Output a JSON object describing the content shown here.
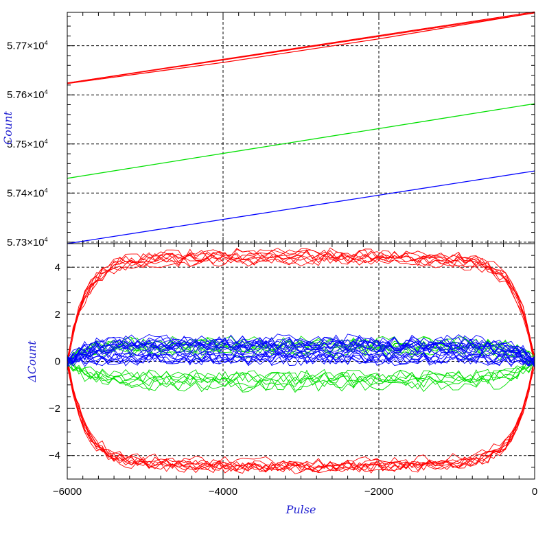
{
  "chart_data": [
    {
      "type": "line",
      "ylabel": "Count",
      "xlim": [
        -6000,
        0
      ],
      "ylim": [
        57297,
        57768
      ],
      "grid": true,
      "yticks": [
        {
          "value": 57300,
          "mant": "5.73",
          "times": "×",
          "base": "10",
          "exp": "4"
        },
        {
          "value": 57400,
          "mant": "5.74",
          "times": "×",
          "base": "10",
          "exp": "4"
        },
        {
          "value": 57500,
          "mant": "5.75",
          "times": "×",
          "base": "10",
          "exp": "4"
        },
        {
          "value": 57600,
          "mant": "5.76",
          "times": "×",
          "base": "10",
          "exp": "4"
        },
        {
          "value": 57700,
          "mant": "5.77",
          "times": "×",
          "base": "10",
          "exp": "4"
        }
      ],
      "xgrid": [
        -4000,
        -2000
      ],
      "series": [
        {
          "color": "#ff0000",
          "points": [
            [
              -6000,
              57624
            ],
            [
              0,
              57769
            ]
          ]
        },
        {
          "color": "#ff0000",
          "points": [
            [
              -6000,
              57624
            ],
            [
              -4000,
              57671
            ],
            [
              -2000,
              57719
            ],
            [
              0,
              57767
            ]
          ]
        },
        {
          "color": "#ff0000",
          "points": [
            [
              -6000,
              57623
            ],
            [
              -4000,
              57666
            ],
            [
              -2000,
              57714
            ],
            [
              0,
              57767
            ]
          ]
        },
        {
          "color": "#00e000",
          "points": [
            [
              -6000,
              57430
            ],
            [
              0,
              57582
            ]
          ]
        },
        {
          "color": "#0000ff",
          "points": [
            [
              -6000,
              57297
            ],
            [
              0,
              57445
            ]
          ]
        }
      ]
    },
    {
      "type": "line",
      "xlabel": "Pulse",
      "ylabel": "ΔCount",
      "xlim": [
        -6000,
        0
      ],
      "ylim": [
        -5,
        5
      ],
      "grid": true,
      "xticks": [
        {
          "value": -6000,
          "label": "−6000"
        },
        {
          "value": -4000,
          "label": "−4000"
        },
        {
          "value": -2000,
          "label": "−2000"
        },
        {
          "value": 0,
          "label": "0"
        }
      ],
      "yticks": [
        {
          "value": -4,
          "label": "−4"
        },
        {
          "value": -2,
          "label": "−2"
        },
        {
          "value": 0,
          "label": "0"
        },
        {
          "value": 2,
          "label": "2"
        },
        {
          "value": 4,
          "label": "4"
        }
      ],
      "series_shape": [
        {
          "color": "#ff0000",
          "level": 4.2,
          "sign": 1,
          "count": 9
        },
        {
          "color": "#ff0000",
          "level": 4.2,
          "sign": -1,
          "count": 9
        },
        {
          "color": "#00e000",
          "level": 0.6,
          "sign": 1,
          "count": 7
        },
        {
          "color": "#00e000",
          "level": 0.8,
          "sign": -1,
          "count": 7
        },
        {
          "color": "#0000ff",
          "level": 0.7,
          "sign": 1,
          "count": 12
        },
        {
          "color": "#0000ff",
          "level": 0.3,
          "sign": 1,
          "count": 8
        }
      ]
    }
  ]
}
